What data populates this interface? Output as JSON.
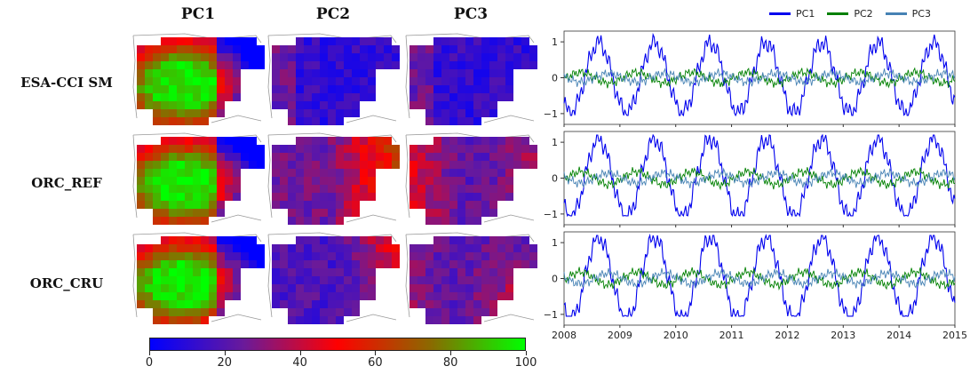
{
  "columns": [
    "PC1",
    "PC2",
    "PC3"
  ],
  "rows": [
    "ESA-CCI SM",
    "ORC_REF",
    "ORC_CRU"
  ],
  "colorbar": {
    "ticks": [
      "0",
      "20",
      "40",
      "60",
      "80",
      "100"
    ],
    "range": [
      0,
      100
    ],
    "colors": [
      "#0000ff",
      "#6a1a9a",
      "#ff0000",
      "#8a6a00",
      "#00ff00"
    ]
  },
  "maps": [
    [
      {
        "pattern": "pc1",
        "level": 0.75
      },
      {
        "pattern": "low",
        "level": 0.12
      },
      {
        "pattern": "low",
        "level": 0.12
      }
    ],
    [
      {
        "pattern": "pc1",
        "level": 0.78
      },
      {
        "pattern": "east",
        "level": 0.25
      },
      {
        "pattern": "west",
        "level": 0.22
      }
    ],
    [
      {
        "pattern": "pc1",
        "level": 0.72
      },
      {
        "pattern": "northeast",
        "level": 0.28
      },
      {
        "pattern": "southeast",
        "level": 0.32
      }
    ]
  ],
  "legend": [
    {
      "name": "PC1",
      "color": "#0000ee"
    },
    {
      "name": "PC2",
      "color": "#008000"
    },
    {
      "name": "PC3",
      "color": "#4682b4"
    }
  ],
  "chart_data": {
    "type": "line",
    "x_ticks": [
      "2008",
      "2009",
      "2010",
      "2011",
      "2012",
      "2013",
      "2014",
      "2015"
    ],
    "xlim": [
      2008,
      2015
    ],
    "ylim": [
      -1.3,
      1.3
    ],
    "y_ticks": [
      "1",
      "0",
      "−1"
    ],
    "panels": [
      {
        "row": "ESA-CCI SM",
        "series": [
          {
            "name": "PC1",
            "amplitude": 0.85,
            "peak_phase": 0.62
          },
          {
            "name": "PC2",
            "amplitude": 0.15,
            "peak_phase": 0.3
          },
          {
            "name": "PC3",
            "amplitude": 0.12,
            "peak_phase": 0.8
          }
        ]
      },
      {
        "row": "ORC_REF",
        "series": [
          {
            "name": "PC1",
            "amplitude": 0.95,
            "peak_phase": 0.62
          },
          {
            "name": "PC2",
            "amplitude": 0.18,
            "peak_phase": 0.3
          },
          {
            "name": "PC3",
            "amplitude": 0.14,
            "peak_phase": 0.8
          }
        ]
      },
      {
        "row": "ORC_CRU",
        "series": [
          {
            "name": "PC1",
            "amplitude": 1.0,
            "peak_phase": 0.62
          },
          {
            "name": "PC2",
            "amplitude": 0.18,
            "peak_phase": 0.3
          },
          {
            "name": "PC3",
            "amplitude": 0.15,
            "peak_phase": 0.8
          }
        ]
      }
    ]
  }
}
